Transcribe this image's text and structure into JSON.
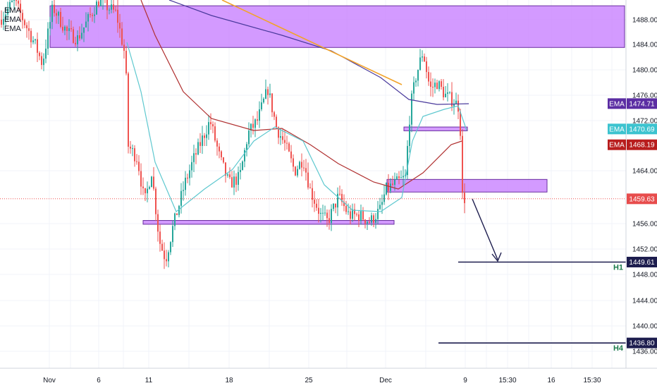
{
  "legend": {
    "items": [
      "EMA",
      "EMA",
      "EMA"
    ]
  },
  "chart_data": {
    "type": "candlestick",
    "x_ticks": [
      "Nov",
      "6",
      "11",
      "18",
      "25",
      "Dec",
      "9",
      "15:30",
      "16",
      "15:30"
    ],
    "y_ticks": [
      "1488.00",
      "1484.00",
      "1480.00",
      "1476.00",
      "1472.00",
      "1464.00",
      "1456.00",
      "1452.00",
      "1448.00",
      "1444.00",
      "1440.00",
      "1436.00"
    ],
    "ylim": [
      1432,
      1491
    ],
    "price_tags": [
      {
        "label": "EMA",
        "value": "1474.71",
        "color": "#5b2da3"
      },
      {
        "label": "EMA",
        "value": "1470.69",
        "color": "#3cc3cf"
      },
      {
        "label": "EMA",
        "value": "1468.19",
        "color": "#b81d1d"
      },
      {
        "label": "",
        "value": "1459.63",
        "color": "#e74c4c"
      },
      {
        "label": "",
        "value": "1449.61",
        "color": "#1d1d4e"
      },
      {
        "label": "",
        "value": "1436.80",
        "color": "#1d1d4e"
      }
    ],
    "levels": [
      {
        "name": "H1",
        "value": 1449.61
      },
      {
        "name": "H4",
        "value": 1436.8
      }
    ],
    "zones": [
      {
        "from": 1483.6,
        "to": 1490.2
      },
      {
        "from": 1460.7,
        "to": 1462.7
      },
      {
        "from": 1470.4,
        "to": 1471.0
      },
      {
        "from": 1455.6,
        "to": 1456.2
      }
    ],
    "current_price": 1459.63,
    "colors": {
      "up": "#26a69a",
      "down": "#ef5350"
    }
  }
}
